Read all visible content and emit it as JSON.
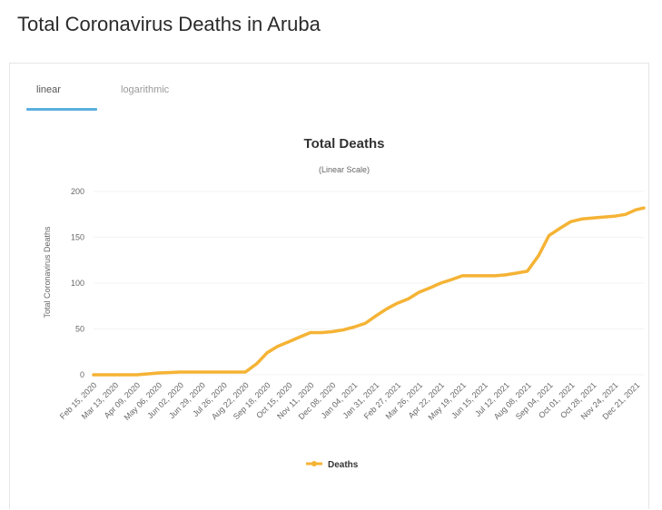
{
  "page": {
    "title": "Total Coronavirus Deaths in Aruba"
  },
  "tabs": [
    {
      "label": "linear",
      "active": true
    },
    {
      "label": "logarithmic",
      "active": false
    }
  ],
  "colors": {
    "series": "#F5B335",
    "tab_accent": "#5BB0DE"
  },
  "chart_data": {
    "type": "line",
    "title": "Total Deaths",
    "subtitle": "(Linear Scale)",
    "ylabel": "Total Coronavirus Deaths",
    "ylim": [
      0,
      200
    ],
    "yticks": [
      0,
      50,
      100,
      150,
      200
    ],
    "grid": true,
    "legend_position": "bottom-center",
    "x_tick_labels": [
      "Feb 15, 2020",
      "Mar 13, 2020",
      "Apr 09, 2020",
      "May 06, 2020",
      "Jun 02, 2020",
      "Jun 29, 2020",
      "Jul 26, 2020",
      "Aug 22, 2020",
      "Sep 18, 2020",
      "Oct 15, 2020",
      "Nov 11, 2020",
      "Dec 08, 2020",
      "Jan 04, 2021",
      "Jan 31, 2021",
      "Feb 27, 2021",
      "Mar 26, 2021",
      "Apr 22, 2021",
      "May 19, 2021",
      "Jun 15, 2021",
      "Jul 12, 2021",
      "Aug 08, 2021",
      "Sep 04, 2021",
      "Oct 01, 2021",
      "Oct 28, 2021",
      "Nov 24, 2021",
      "Dec 21, 2021"
    ],
    "series": [
      {
        "name": "Deaths",
        "x": [
          "2020-02-15",
          "2020-03-13",
          "2020-04-09",
          "2020-05-06",
          "2020-06-02",
          "2020-06-29",
          "2020-07-26",
          "2020-08-08",
          "2020-08-22",
          "2020-09-05",
          "2020-09-18",
          "2020-10-01",
          "2020-10-15",
          "2020-10-28",
          "2020-11-11",
          "2020-11-25",
          "2020-12-08",
          "2020-12-22",
          "2021-01-04",
          "2021-01-18",
          "2021-01-31",
          "2021-02-14",
          "2021-02-27",
          "2021-03-13",
          "2021-03-26",
          "2021-04-09",
          "2021-04-22",
          "2021-05-06",
          "2021-05-19",
          "2021-06-02",
          "2021-06-15",
          "2021-06-29",
          "2021-07-12",
          "2021-07-26",
          "2021-08-08",
          "2021-08-22",
          "2021-09-04",
          "2021-09-18",
          "2021-10-01",
          "2021-10-15",
          "2021-10-28",
          "2021-11-10",
          "2021-11-24",
          "2021-12-08",
          "2021-12-21",
          "2021-12-31"
        ],
        "values": [
          0,
          0,
          0,
          2,
          3,
          3,
          3,
          3,
          3,
          12,
          24,
          31,
          36,
          41,
          46,
          46,
          47,
          49,
          52,
          56,
          64,
          72,
          78,
          83,
          90,
          95,
          100,
          104,
          108,
          108,
          108,
          108,
          109,
          111,
          113,
          130,
          152,
          160,
          167,
          170,
          171,
          172,
          173,
          175,
          180,
          182
        ]
      }
    ]
  }
}
